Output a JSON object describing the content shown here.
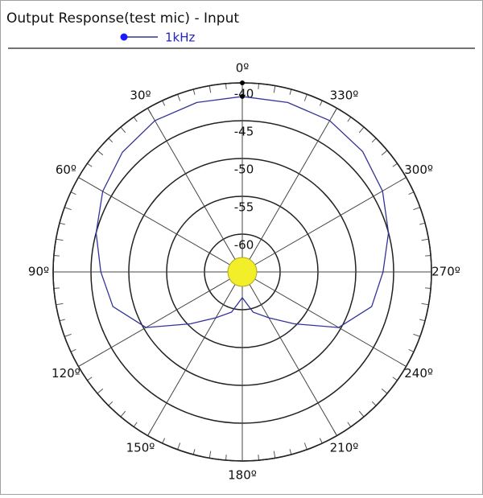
{
  "chart_data": {
    "type": "polar",
    "title": "Output Response(test mic) - Input",
    "theta_zero": "top",
    "theta_direction": "counterclockwise",
    "rlim": [
      -65,
      -40
    ],
    "rticks": [
      -60,
      -55,
      -50,
      -45,
      -40
    ],
    "thetaticks": [
      {
        "value": 0,
        "label": "0º"
      },
      {
        "value": 30,
        "label": "30º"
      },
      {
        "value": 60,
        "label": "60º"
      },
      {
        "value": 90,
        "label": "90º"
      },
      {
        "value": 120,
        "label": "120º"
      },
      {
        "value": 150,
        "label": "150º"
      },
      {
        "value": 180,
        "label": "180º"
      },
      {
        "value": 210,
        "label": "210º"
      },
      {
        "value": 240,
        "label": "240º"
      },
      {
        "value": 270,
        "label": "270º"
      },
      {
        "value": 300,
        "label": "300º"
      },
      {
        "value": 330,
        "label": "330º"
      }
    ],
    "series": [
      {
        "name": "1kHz",
        "color": "#33339a",
        "theta": [
          0,
          15,
          30,
          45,
          60,
          75,
          90,
          105,
          120,
          135,
          150,
          165,
          180,
          195,
          210,
          225,
          240,
          255,
          270,
          285,
          300,
          315,
          330,
          345
        ],
        "values": [
          -41.8,
          -41.8,
          -41.9,
          -42.6,
          -43.7,
          -45.0,
          -46.3,
          -47.3,
          -50.3,
          -55.3,
          -58.0,
          -59.5,
          -61.6,
          -59.5,
          -58.0,
          -55.3,
          -50.3,
          -47.3,
          -46.4,
          -45.0,
          -43.6,
          -42.5,
          -41.9,
          -41.8
        ]
      }
    ]
  }
}
